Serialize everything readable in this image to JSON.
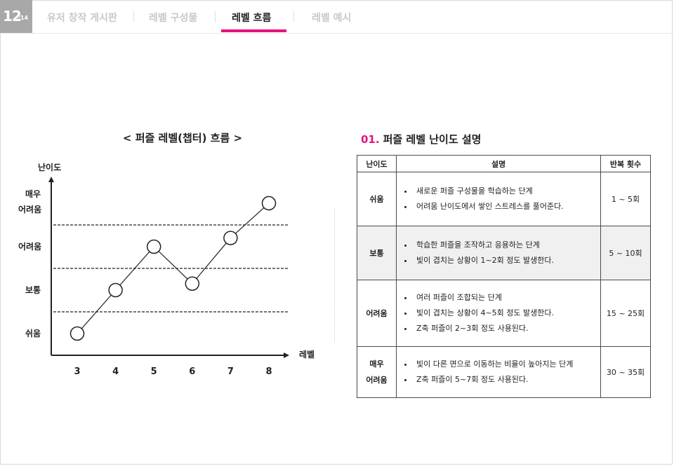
{
  "header": {
    "page_current": "12",
    "page_total": "/14",
    "tabs": [
      {
        "label": "유저 창작 게시판",
        "active": false
      },
      {
        "label": "레벨 구성물",
        "active": false
      },
      {
        "label": "레벨 흐름",
        "active": true
      },
      {
        "label": "레벨 예시",
        "active": false
      }
    ],
    "accent_color": "#e4147c"
  },
  "chart_title": "< 퍼즐 레벨(챕터) 흐름 >",
  "chart_data": {
    "type": "line",
    "title": "< 퍼즐 레벨(챕터) 흐름 >",
    "ylabel": "난이도",
    "xlabel": "레벨",
    "x": [
      "3",
      "4",
      "5",
      "6",
      "7",
      "8"
    ],
    "y_categories": [
      "쉬움",
      "보통",
      "어려움",
      "매우 어려움"
    ],
    "y_category_lines": [
      "쉬움",
      "보통",
      "어려움",
      "매우\n어려움"
    ],
    "series": [
      {
        "values": [
          0.0,
          1.0,
          2.0,
          1.15,
          2.2,
          3.0
        ]
      }
    ],
    "ylim": [
      0,
      3
    ],
    "marker": "open-circle",
    "dashed_thresholds": true
  },
  "section": {
    "number": "01.",
    "title": "퍼즐 레벨 난이도 설명"
  },
  "table": {
    "headers": [
      "난이도",
      "설명",
      "반복 횟수"
    ],
    "rows": [
      {
        "level_lines": [
          "쉬움"
        ],
        "bullets": [
          "새로운 퍼즐 구성물을 학습하는 단계",
          "어려움 난이도에서 쌓인 스트레스를 풀어준다."
        ],
        "count": "1 ~ 5회",
        "shaded": false
      },
      {
        "level_lines": [
          "보통"
        ],
        "bullets": [
          "학습한 퍼즐을 조작하고 응용하는 단계",
          "빛이 겹치는 상황이 1~2회 정도 발생한다."
        ],
        "count": "5 ~ 10회",
        "shaded": true
      },
      {
        "level_lines": [
          "어려움"
        ],
        "bullets": [
          "여러 퍼즐이 조합되는 단계",
          "빛이 겹치는 상황이  4~5회 정도 발생한다.",
          "Z축 퍼즐이 2~3회 정도 사용된다."
        ],
        "count": "15 ~ 25회",
        "shaded": false
      },
      {
        "level_lines": [
          "매우",
          "어려움"
        ],
        "bullets": [
          " 빛이 다른 면으로 이동하는 비율이 높아지는 단계",
          "Z축 퍼즐이 5~7회 정도 사용된다."
        ],
        "count": "30 ~ 35회",
        "shaded": false
      }
    ]
  }
}
